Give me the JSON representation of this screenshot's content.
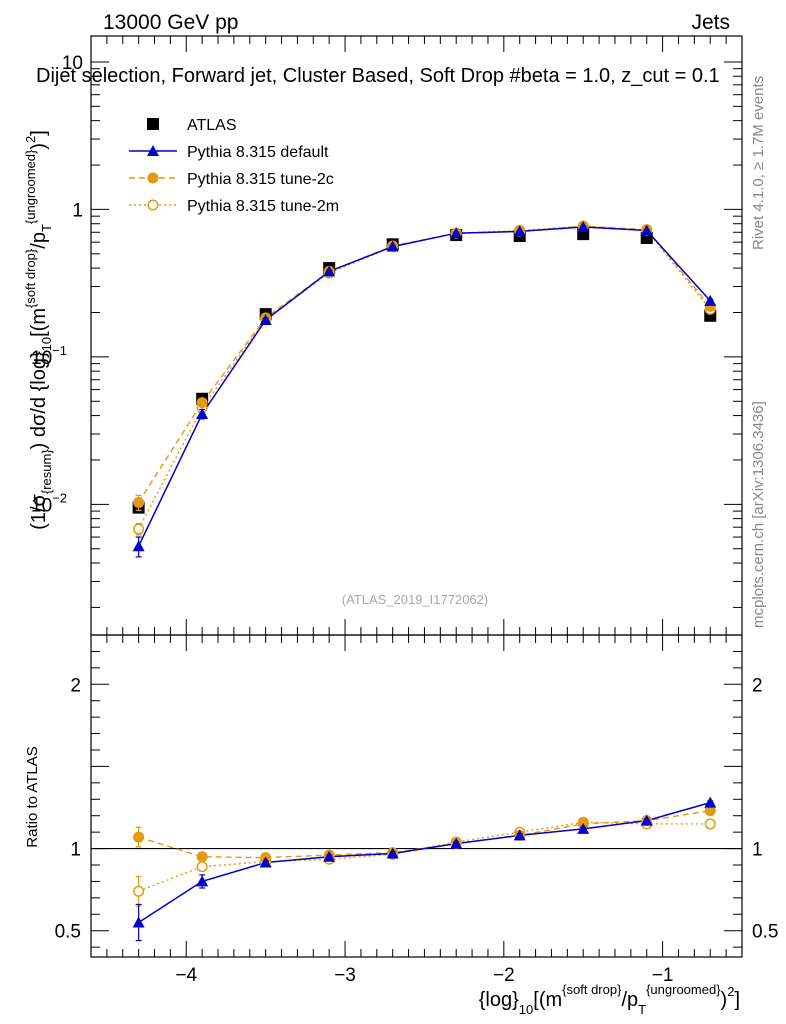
{
  "header": {
    "left": "13000 GeV pp",
    "right": "Jets",
    "title": "Dijet selection, Forward jet, Cluster Based, Soft Drop #beta = 1.0, z_cut = 0.1"
  },
  "side_labels": {
    "rivet": "Rivet 4.1.0, ≥ 1.7M events",
    "mcplots": "mcplots.cern.ch [arXiv:1306.3436]"
  },
  "watermark": "(ATLAS_2019_I1772062)",
  "colors": {
    "atlas": "#000000",
    "default": "#0000cc",
    "tune2c": "#e39a0f",
    "tune2m": "#e39a0f"
  },
  "chart_data": [
    {
      "type": "scatter",
      "panel": "main",
      "ylabel": "(1/σ_{resum}) dσ/d {log}_10[(m^{soft drop}/p_T^{ungroomed})^2]",
      "yscale": "log",
      "ylim": [
        0.0013,
        15
      ],
      "xlim": [
        -4.6,
        -0.5
      ],
      "y_ticks": [
        {
          "v": 0.01,
          "base": "10",
          "exp": "−2"
        },
        {
          "v": 0.1,
          "base": "10",
          "exp": "−1"
        },
        {
          "v": 1,
          "label": "1"
        },
        {
          "v": 10,
          "label": "10"
        }
      ],
      "series": [
        {
          "name": "ATLAS",
          "key": "atlas",
          "x": [
            -4.3,
            -3.9,
            -3.5,
            -3.1,
            -2.7,
            -2.3,
            -1.9,
            -1.5,
            -1.1,
            -0.7
          ],
          "values": [
            0.0095,
            0.052,
            0.195,
            0.4,
            0.58,
            0.67,
            0.66,
            0.68,
            0.64,
            0.19
          ]
        },
        {
          "name": "Pythia 8.315 default",
          "key": "default",
          "x": [
            -4.3,
            -3.9,
            -3.5,
            -3.1,
            -2.7,
            -2.3,
            -1.9,
            -1.5,
            -1.1,
            -0.7
          ],
          "values": [
            0.0052,
            0.041,
            0.178,
            0.38,
            0.56,
            0.69,
            0.71,
            0.76,
            0.72,
            0.24
          ],
          "err": [
            0.0008,
            0.003,
            0.005,
            0.008,
            0.01,
            0.01,
            0.01,
            0.01,
            0.01,
            0.006
          ]
        },
        {
          "name": "Pythia 8.315 tune-2c",
          "key": "tune2c",
          "x": [
            -4.3,
            -3.9,
            -3.5,
            -3.1,
            -2.7,
            -2.3,
            -1.9,
            -1.5,
            -1.1,
            -0.7
          ],
          "values": [
            0.0103,
            0.049,
            0.184,
            0.38,
            0.565,
            0.69,
            0.71,
            0.77,
            0.73,
            0.22
          ],
          "err": [
            0.0012,
            0.003,
            0.005,
            0.008,
            0.01,
            0.01,
            0.01,
            0.01,
            0.01,
            0.006
          ]
        },
        {
          "name": "Pythia 8.315 tune-2m",
          "key": "tune2m",
          "x": [
            -4.3,
            -3.9,
            -3.5,
            -3.1,
            -2.7,
            -2.3,
            -1.9,
            -1.5,
            -1.1,
            -0.7
          ],
          "values": [
            0.0068,
            0.045,
            0.18,
            0.37,
            0.56,
            0.69,
            0.72,
            0.77,
            0.72,
            0.21
          ],
          "err": [
            0.0006,
            0.003,
            0.005,
            0.008,
            0.01,
            0.01,
            0.01,
            0.01,
            0.01,
            0.006
          ]
        }
      ]
    },
    {
      "type": "scatter",
      "panel": "ratio",
      "ylabel": "Ratio to ATLAS",
      "ylim": [
        0.34,
        2.3
      ],
      "xlim": [
        -4.6,
        -0.5
      ],
      "xlabel": "{log}_10[(m^{soft drop}/p_T^{ungroomed})^2]",
      "y_ticks": [
        {
          "v": 0.5,
          "label": "0.5"
        },
        {
          "v": 1,
          "label": "1"
        },
        {
          "v": 2,
          "label": "2"
        }
      ],
      "x_ticks": [
        {
          "v": -4,
          "label": "−4"
        },
        {
          "v": -3,
          "label": "−3"
        },
        {
          "v": -2,
          "label": "−2"
        },
        {
          "v": -1,
          "label": "−1"
        }
      ],
      "series": [
        {
          "name": "Pythia 8.315 default",
          "key": "default",
          "x": [
            -4.3,
            -3.9,
            -3.5,
            -3.1,
            -2.7,
            -2.3,
            -1.9,
            -1.5,
            -1.1,
            -0.7
          ],
          "values": [
            0.55,
            0.8,
            0.915,
            0.95,
            0.97,
            1.03,
            1.08,
            1.12,
            1.17,
            1.28
          ],
          "err": [
            0.11,
            0.04,
            0.01,
            0.01,
            0.01,
            0.01,
            0.01,
            0.01,
            0.01,
            0.01
          ]
        },
        {
          "name": "Pythia 8.315 tune-2c",
          "key": "tune2c",
          "x": [
            -4.3,
            -3.9,
            -3.5,
            -3.1,
            -2.7,
            -2.3,
            -1.9,
            -1.5,
            -1.1,
            -0.7
          ],
          "values": [
            1.07,
            0.95,
            0.945,
            0.96,
            0.975,
            1.03,
            1.08,
            1.15,
            1.17,
            1.23
          ],
          "err": [
            0.06,
            0.02,
            0.01,
            0.01,
            0.01,
            0.01,
            0.01,
            0.01,
            0.01,
            0.01
          ]
        },
        {
          "name": "Pythia 8.315 tune-2m",
          "key": "tune2m",
          "x": [
            -4.3,
            -3.9,
            -3.5,
            -3.1,
            -2.7,
            -2.3,
            -1.9,
            -1.5,
            -1.1,
            -0.7
          ],
          "values": [
            0.74,
            0.89,
            0.92,
            0.935,
            0.965,
            1.04,
            1.1,
            1.16,
            1.15,
            1.15
          ],
          "err": [
            0.09,
            0.02,
            0.01,
            0.01,
            0.01,
            0.01,
            0.01,
            0.01,
            0.01,
            0.01
          ]
        }
      ]
    }
  ]
}
